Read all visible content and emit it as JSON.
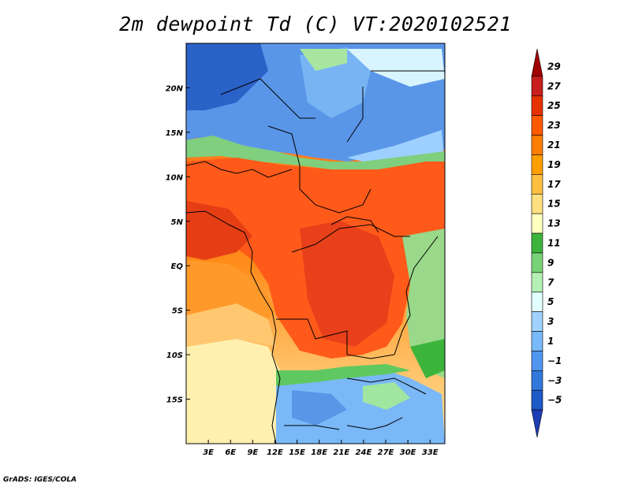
{
  "title": "2m dewpoint Td (C) VT:2020102521",
  "footer": "GrADS: IGES/COLA",
  "lat_ticks": [
    {
      "label": "20N",
      "value": 20
    },
    {
      "label": "15N",
      "value": 15
    },
    {
      "label": "10N",
      "value": 10
    },
    {
      "label": "5N",
      "value": 5
    },
    {
      "label": "EQ",
      "value": 0
    },
    {
      "label": "5S",
      "value": -5
    },
    {
      "label": "10S",
      "value": -10
    },
    {
      "label": "15S",
      "value": -15
    }
  ],
  "lon_ticks": [
    {
      "label": "3E",
      "value": 3
    },
    {
      "label": "6E",
      "value": 6
    },
    {
      "label": "9E",
      "value": 9
    },
    {
      "label": "12E",
      "value": 12
    },
    {
      "label": "15E",
      "value": 15
    },
    {
      "label": "18E",
      "value": 18
    },
    {
      "label": "21E",
      "value": 21
    },
    {
      "label": "24E",
      "value": 24
    },
    {
      "label": "27E",
      "value": 27
    },
    {
      "label": "30E",
      "value": 30
    },
    {
      "label": "33E",
      "value": 33
    }
  ],
  "map_extent": {
    "lon_min": 0,
    "lon_max": 35,
    "lat_min": -20,
    "lat_max": 25
  },
  "colorbar": {
    "labels": [
      "29",
      "27",
      "25",
      "23",
      "21",
      "19",
      "17",
      "15",
      "13",
      "11",
      "9",
      "7",
      "5",
      "3",
      "1",
      "−1",
      "−3",
      "−5"
    ],
    "colors": [
      "#a00000",
      "#c81e1e",
      "#e63200",
      "#ff5a00",
      "#ff7d00",
      "#ff9f00",
      "#ffbf40",
      "#ffe080",
      "#ffffc0",
      "#3cb43c",
      "#78d278",
      "#b4f0b4",
      "#e1ffff",
      "#a0d2ff",
      "#78b9fa",
      "#5096f0",
      "#3278dc",
      "#1e5ac8",
      "#1e3cb4"
    ]
  }
}
